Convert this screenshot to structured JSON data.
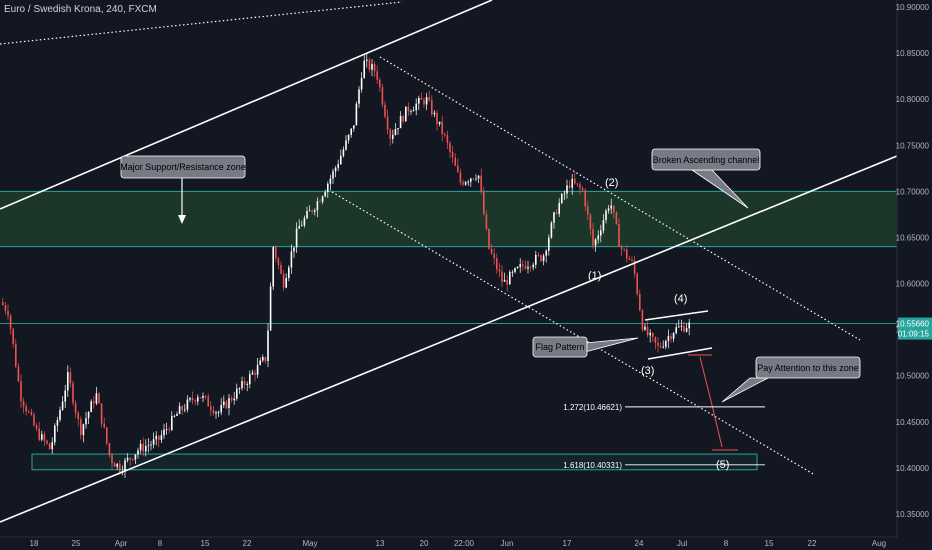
{
  "chart_data": {
    "type": "candlestick",
    "title": "Euro / Swedish Krona, 240, FXCM",
    "price_axis": {
      "range": [
        10.33,
        10.91
      ],
      "ticks": [
        "10.90000",
        "10.85000",
        "10.80000",
        "10.75000",
        "10.70000",
        "10.65000",
        "10.60000",
        "10.55000",
        "10.50000",
        "10.45000",
        "10.40000",
        "10.35000"
      ],
      "current_price": "10.55660",
      "countdown": "01:09:15"
    },
    "time_axis": {
      "ticks": [
        "18",
        "25",
        "Apr",
        "8",
        "15",
        "22",
        "May",
        "13",
        "20",
        "22:00",
        "Jun",
        "17",
        "24",
        "Jul",
        "8",
        "15",
        "22",
        "Aug"
      ]
    },
    "zones": {
      "support_resistance": {
        "upper": 10.7,
        "lower": 10.64,
        "color": "#1e3a2a"
      },
      "target_zone": {
        "upper": 10.415,
        "lower": 10.398
      },
      "current_level": 10.5566
    },
    "fib_levels": [
      {
        "label": "1.272(10.46621)",
        "value": 10.46621
      },
      {
        "label": "1.618(10.40331)",
        "value": 10.40331
      }
    ],
    "wave_labels": [
      "(1)",
      "(2)",
      "(3)",
      "(4)",
      "(5)"
    ],
    "callouts": {
      "support": "Major Support/Resistance zone",
      "channel": "Broken Ascending channel",
      "flag": "Flag Pattern",
      "attention": "Pay Attention to this zone"
    },
    "colors": {
      "up": "#ffffff",
      "down": "#ef5350",
      "line": "#ffffff",
      "zone_line": "#26a69a"
    }
  }
}
